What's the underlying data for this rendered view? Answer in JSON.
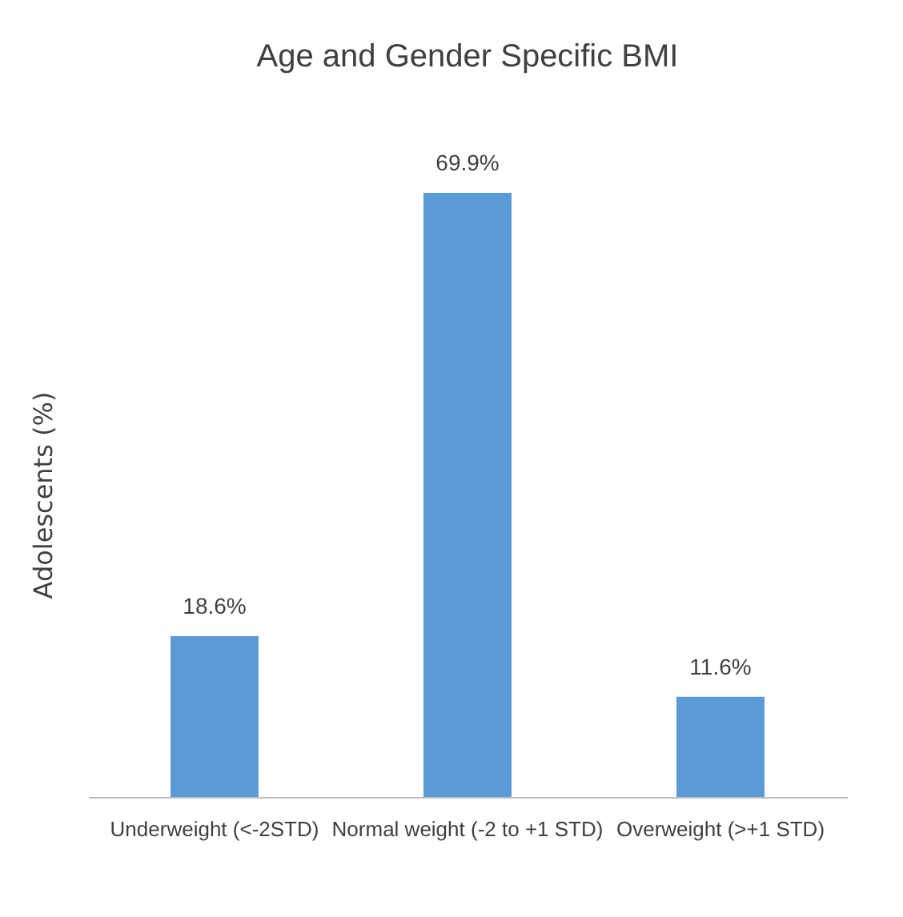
{
  "chart_data": {
    "type": "bar",
    "title": "Age and Gender Specific BMI",
    "ylabel": "Adolescents (%)",
    "categories": [
      "Underweight (<-2STD)",
      "Normal weight (-2 to +1 STD)",
      "Overweight (>+1 STD)"
    ],
    "values": [
      18.6,
      69.9,
      11.6
    ],
    "value_labels": [
      "18.6%",
      "69.9%",
      "11.6%"
    ],
    "color": "#5b9bd5"
  }
}
